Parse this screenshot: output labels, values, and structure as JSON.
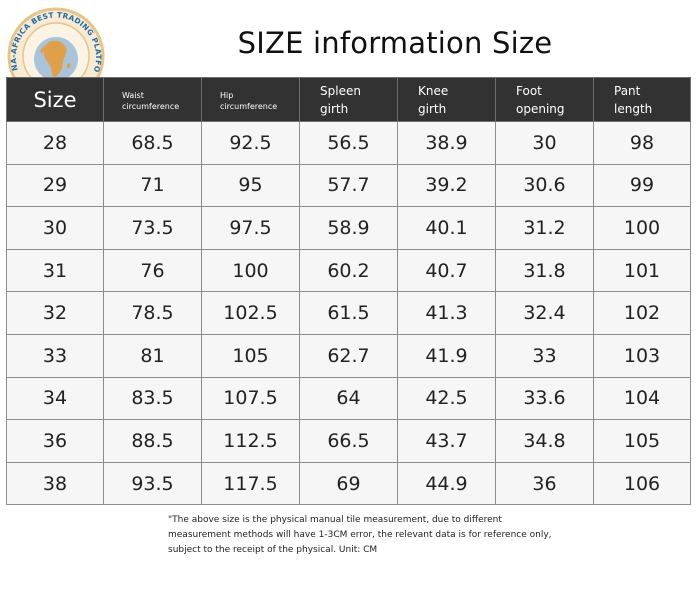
{
  "logo": {
    "ring_text": "CHINA-AFRICA BEST TRADING PLATFORM",
    "icon": "globe-africa-map-icon",
    "colors": {
      "ring": "#e9c48a",
      "globe": "#a9c3d8",
      "land": "#e0a04a"
    }
  },
  "title": "SIZE information Size",
  "table": {
    "headers": [
      {
        "text": "Size",
        "style": "large"
      },
      {
        "text": "Waist\ncircumference",
        "style": "small"
      },
      {
        "text": "Hip\ncircumference",
        "style": "small"
      },
      {
        "text": "Spleen\ngirth",
        "style": "medium"
      },
      {
        "text": "Knee\ngirth",
        "style": "medium"
      },
      {
        "text": "Foot\nopening",
        "style": "medium"
      },
      {
        "text": "Pant\nlength",
        "style": "medium"
      }
    ],
    "rows": [
      [
        "28",
        "68.5",
        "92.5",
        "56.5",
        "38.9",
        "30",
        "98"
      ],
      [
        "29",
        "71",
        "95",
        "57.7",
        "39.2",
        "30.6",
        "99"
      ],
      [
        "30",
        "73.5",
        "97.5",
        "58.9",
        "40.1",
        "31.2",
        "100"
      ],
      [
        "31",
        "76",
        "100",
        "60.2",
        "40.7",
        "31.8",
        "101"
      ],
      [
        "32",
        "78.5",
        "102.5",
        "61.5",
        "41.3",
        "32.4",
        "102"
      ],
      [
        "33",
        "81",
        "105",
        "62.7",
        "41.9",
        "33",
        "103"
      ],
      [
        "34",
        "83.5",
        "107.5",
        "64",
        "42.5",
        "33.6",
        "104"
      ],
      [
        "36",
        "88.5",
        "112.5",
        "66.5",
        "43.7",
        "34.8",
        "105"
      ],
      [
        "38",
        "93.5",
        "117.5",
        "69",
        "44.9",
        "36",
        "106"
      ]
    ],
    "colors": {
      "header_bg": "#323232",
      "header_text": "#ffffff",
      "cell_bg": "#f6f6f6",
      "border": "#8d8d8d"
    }
  },
  "note": {
    "lines": [
      "\"The above size is the physical manual tile measurement, due to different",
      "measurement methods will have 1-3CM error, the relevant data is for reference only,",
      "subject to the receipt of the physical. Unit: CM"
    ]
  }
}
